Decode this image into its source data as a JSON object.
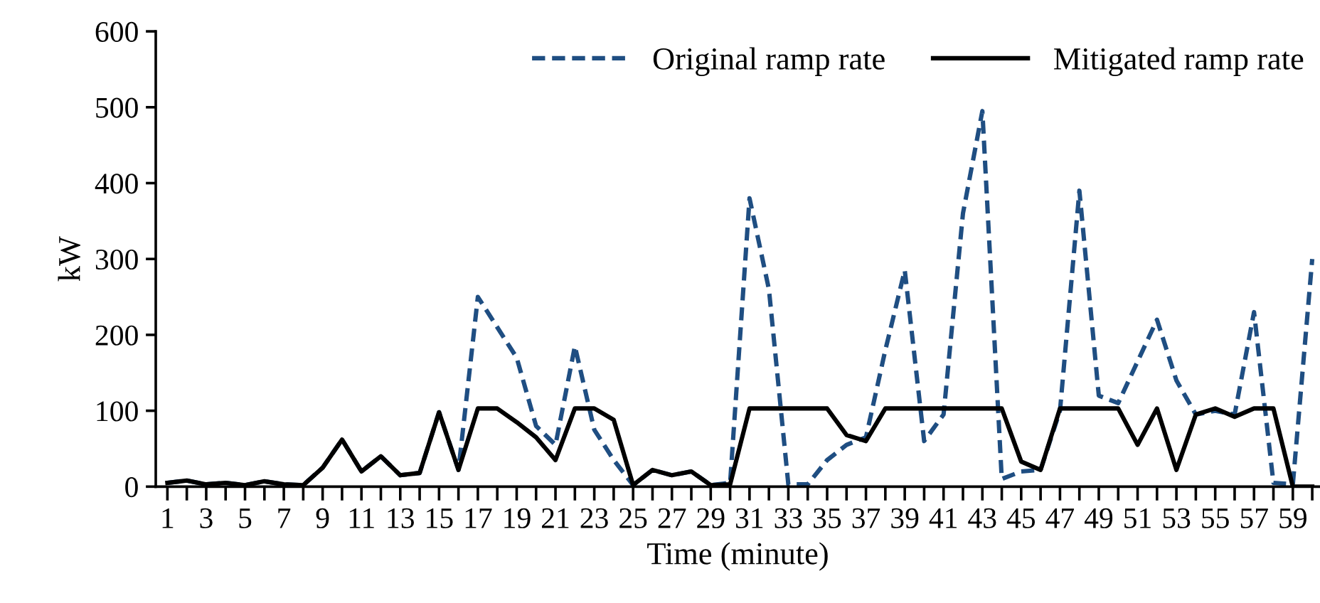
{
  "chart_data": {
    "type": "line",
    "xlabel": "Time (minute)",
    "ylabel": "kW",
    "categories": [
      "1",
      null,
      "3",
      null,
      "5",
      null,
      "7",
      null,
      "9",
      null,
      "11",
      null,
      "13",
      null,
      "15",
      null,
      "17",
      null,
      "19",
      null,
      "21",
      null,
      "23",
      null,
      "25",
      null,
      "27",
      null,
      "29",
      null,
      "31",
      null,
      "33",
      null,
      "35",
      null,
      "37",
      null,
      "39",
      null,
      "41",
      null,
      "43",
      null,
      "45",
      null,
      "47",
      null,
      "49",
      null,
      "51",
      null,
      "53",
      null,
      "55",
      null,
      "57",
      null,
      "59",
      null
    ],
    "series": [
      {
        "name": "Original ramp rate",
        "color": "#1f4e82",
        "line_style": "dashed",
        "values": [
          5,
          8,
          3,
          5,
          2,
          7,
          3,
          2,
          25,
          62,
          20,
          40,
          15,
          18,
          98,
          22,
          250,
          210,
          170,
          80,
          55,
          185,
          75,
          35,
          2,
          22,
          15,
          20,
          2,
          5,
          380,
          260,
          3,
          3,
          35,
          55,
          65,
          180,
          285,
          60,
          95,
          360,
          495,
          10,
          20,
          22,
          100,
          390,
          120,
          110,
          165,
          220,
          140,
          95,
          100,
          95,
          230,
          5,
          3,
          300
        ]
      },
      {
        "name": "Mitigated ramp rate",
        "color": "#000000",
        "line_style": "solid",
        "values": [
          5,
          8,
          3,
          5,
          2,
          7,
          3,
          2,
          25,
          62,
          20,
          40,
          15,
          18,
          98,
          22,
          103,
          103,
          85,
          65,
          35,
          103,
          103,
          88,
          2,
          22,
          15,
          20,
          2,
          3,
          103,
          103,
          103,
          103,
          103,
          68,
          60,
          103,
          103,
          103,
          103,
          103,
          103,
          103,
          33,
          22,
          103,
          103,
          103,
          103,
          55,
          103,
          22,
          95,
          103,
          92,
          103,
          103,
          0,
          0
        ]
      }
    ],
    "ylim": [
      0,
      600
    ],
    "yticks": [
      0,
      100,
      200,
      300,
      400,
      500,
      600
    ],
    "grid": false,
    "legend": "top right",
    "marker": "none"
  }
}
